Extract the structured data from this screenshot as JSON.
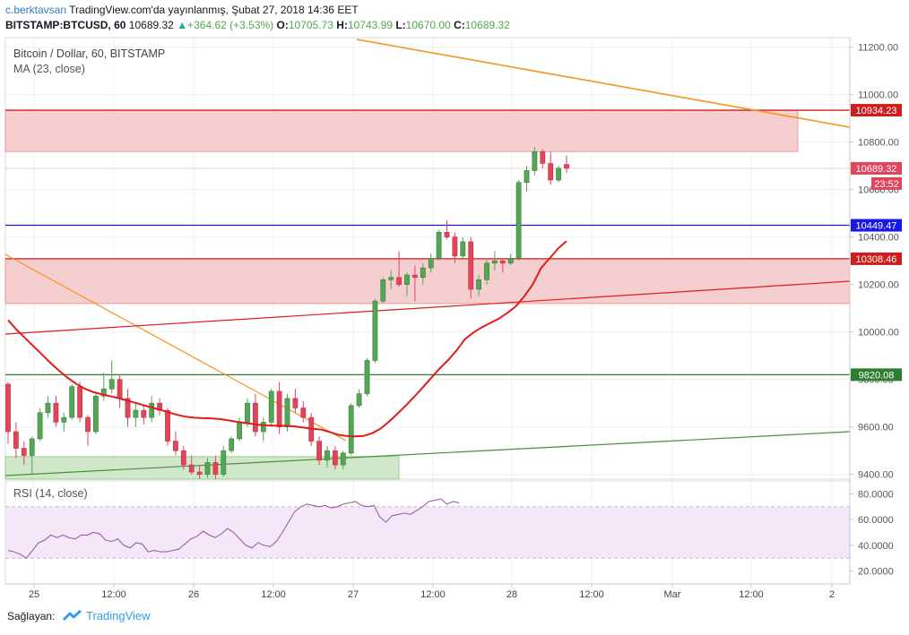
{
  "header": {
    "user": "c.berktavsan",
    "published": "TradingView.com'da yayınlanmış, Şubat 27, 2018 14:36 EET",
    "symbol": "BITSTAMP:BTCUSD, 60",
    "price": "10689.32",
    "change": "+364.62 (+3.53%)",
    "o_label": "O:",
    "o": "10705.73",
    "h_label": "H:",
    "h": "10743.99",
    "l_label": "L:",
    "l": "10670.00",
    "c_label": "C:",
    "c": "10689.32"
  },
  "legend": {
    "title": "Bitcoin / Dollar, 60, BITSTAMP",
    "ma": "MA (23, close)",
    "rsi": "RSI (14, close)"
  },
  "footer": {
    "label": "Sağlayan:",
    "brand": "TradingView"
  },
  "colors": {
    "up": "#53a653",
    "down": "#e0455a",
    "ma": "#e01b1b",
    "rsi": "#9c5fa8",
    "trend_orange": "#f7931a",
    "red_line": "#e01b1b",
    "blue_line": "#1a18e8",
    "green_line": "#2e7d32"
  },
  "chart_data": {
    "type": "candlestick",
    "ylim": [
      9380,
      11240
    ],
    "y_ticks": [
      "11200.00",
      "11000.00",
      "10800.00",
      "10600.00",
      "10400.00",
      "10200.00",
      "10000.00",
      "9800.00",
      "9600.00",
      "9400.00"
    ],
    "x_ticks": [
      "25",
      "12:00",
      "26",
      "12:00",
      "27",
      "12:00",
      "28",
      "12:00",
      "Mar",
      "12:00",
      "2"
    ],
    "price_labels": [
      {
        "value": 10934.23,
        "text": "10934.23",
        "color": "#cc1e1e"
      },
      {
        "value": 10689.32,
        "text": "10689.32",
        "color": "#e0455a"
      },
      {
        "value": 10449.47,
        "text": "10449.47",
        "color": "#1a18e8"
      },
      {
        "value": 10308.46,
        "text": "10308.46",
        "color": "#cc1e1e"
      },
      {
        "value": 9820.08,
        "text": "9820.08",
        "color": "#2e7d32"
      }
    ],
    "countdown": "23:52",
    "zones": [
      {
        "from": 10760,
        "to": 10934.23,
        "color": "#f4c7c7",
        "stroke": "#e88a8a"
      },
      {
        "from": 10120,
        "to": 10308.46,
        "color": "#f4c7c7",
        "stroke": "#e88a8a"
      },
      {
        "from": 9380,
        "to": 9475,
        "color": "#c8e5c0",
        "stroke": "#8cc47f"
      }
    ],
    "candles": [
      {
        "o": 9780,
        "h": 9790,
        "l": 9530,
        "c": 9580
      },
      {
        "o": 9580,
        "h": 9620,
        "l": 9470,
        "c": 9510
      },
      {
        "o": 9510,
        "h": 9540,
        "l": 9440,
        "c": 9480
      },
      {
        "o": 9480,
        "h": 9560,
        "l": 9400,
        "c": 9550
      },
      {
        "o": 9550,
        "h": 9680,
        "l": 9540,
        "c": 9660
      },
      {
        "o": 9660,
        "h": 9730,
        "l": 9640,
        "c": 9700
      },
      {
        "o": 9700,
        "h": 9730,
        "l": 9600,
        "c": 9620
      },
      {
        "o": 9620,
        "h": 9660,
        "l": 9580,
        "c": 9640
      },
      {
        "o": 9640,
        "h": 9780,
        "l": 9630,
        "c": 9770
      },
      {
        "o": 9770,
        "h": 9790,
        "l": 9620,
        "c": 9640
      },
      {
        "o": 9640,
        "h": 9650,
        "l": 9520,
        "c": 9580
      },
      {
        "o": 9580,
        "h": 9740,
        "l": 9570,
        "c": 9730
      },
      {
        "o": 9730,
        "h": 9830,
        "l": 9710,
        "c": 9760
      },
      {
        "o": 9760,
        "h": 9880,
        "l": 9740,
        "c": 9800
      },
      {
        "o": 9800,
        "h": 9820,
        "l": 9680,
        "c": 9720
      },
      {
        "o": 9720,
        "h": 9760,
        "l": 9600,
        "c": 9640
      },
      {
        "o": 9640,
        "h": 9700,
        "l": 9600,
        "c": 9670
      },
      {
        "o": 9670,
        "h": 9690,
        "l": 9610,
        "c": 9640
      },
      {
        "o": 9640,
        "h": 9730,
        "l": 9620,
        "c": 9700
      },
      {
        "o": 9700,
        "h": 9720,
        "l": 9650,
        "c": 9670
      },
      {
        "o": 9670,
        "h": 9680,
        "l": 9520,
        "c": 9540
      },
      {
        "o": 9540,
        "h": 9580,
        "l": 9480,
        "c": 9500
      },
      {
        "o": 9500,
        "h": 9520,
        "l": 9420,
        "c": 9440
      },
      {
        "o": 9440,
        "h": 9480,
        "l": 9400,
        "c": 9410
      },
      {
        "o": 9410,
        "h": 9440,
        "l": 9380,
        "c": 9400
      },
      {
        "o": 9400,
        "h": 9470,
        "l": 9385,
        "c": 9450
      },
      {
        "o": 9450,
        "h": 9480,
        "l": 9380,
        "c": 9400
      },
      {
        "o": 9400,
        "h": 9520,
        "l": 9390,
        "c": 9500
      },
      {
        "o": 9500,
        "h": 9560,
        "l": 9490,
        "c": 9550
      },
      {
        "o": 9550,
        "h": 9640,
        "l": 9540,
        "c": 9620
      },
      {
        "o": 9620,
        "h": 9720,
        "l": 9600,
        "c": 9700
      },
      {
        "o": 9700,
        "h": 9740,
        "l": 9560,
        "c": 9580
      },
      {
        "o": 9580,
        "h": 9640,
        "l": 9540,
        "c": 9620
      },
      {
        "o": 9620,
        "h": 9760,
        "l": 9600,
        "c": 9750
      },
      {
        "o": 9750,
        "h": 9790,
        "l": 9570,
        "c": 9600
      },
      {
        "o": 9600,
        "h": 9740,
        "l": 9580,
        "c": 9720
      },
      {
        "o": 9720,
        "h": 9760,
        "l": 9660,
        "c": 9680
      },
      {
        "o": 9680,
        "h": 9710,
        "l": 9620,
        "c": 9640
      },
      {
        "o": 9640,
        "h": 9660,
        "l": 9520,
        "c": 9540
      },
      {
        "o": 9540,
        "h": 9560,
        "l": 9440,
        "c": 9460
      },
      {
        "o": 9460,
        "h": 9520,
        "l": 9430,
        "c": 9500
      },
      {
        "o": 9500,
        "h": 9520,
        "l": 9420,
        "c": 9440
      },
      {
        "o": 9440,
        "h": 9500,
        "l": 9420,
        "c": 9490
      },
      {
        "o": 9490,
        "h": 9700,
        "l": 9480,
        "c": 9690
      },
      {
        "o": 9690,
        "h": 9760,
        "l": 9680,
        "c": 9740
      },
      {
        "o": 9740,
        "h": 9890,
        "l": 9730,
        "c": 9880
      },
      {
        "o": 9880,
        "h": 10140,
        "l": 9870,
        "c": 10130
      },
      {
        "o": 10130,
        "h": 10230,
        "l": 10120,
        "c": 10220
      },
      {
        "o": 10220,
        "h": 10260,
        "l": 10180,
        "c": 10230
      },
      {
        "o": 10230,
        "h": 10340,
        "l": 10190,
        "c": 10200
      },
      {
        "o": 10200,
        "h": 10250,
        "l": 10150,
        "c": 10240
      },
      {
        "o": 10240,
        "h": 10280,
        "l": 10130,
        "c": 10230
      },
      {
        "o": 10230,
        "h": 10290,
        "l": 10200,
        "c": 10270
      },
      {
        "o": 10270,
        "h": 10330,
        "l": 10250,
        "c": 10310
      },
      {
        "o": 10310,
        "h": 10430,
        "l": 10300,
        "c": 10420
      },
      {
        "o": 10420,
        "h": 10470,
        "l": 10390,
        "c": 10400
      },
      {
        "o": 10400,
        "h": 10420,
        "l": 10290,
        "c": 10320
      },
      {
        "o": 10320,
        "h": 10400,
        "l": 10310,
        "c": 10380
      },
      {
        "o": 10380,
        "h": 10400,
        "l": 10140,
        "c": 10180
      },
      {
        "o": 10180,
        "h": 10240,
        "l": 10150,
        "c": 10220
      },
      {
        "o": 10220,
        "h": 10310,
        "l": 10200,
        "c": 10290
      },
      {
        "o": 10290,
        "h": 10340,
        "l": 10260,
        "c": 10300
      },
      {
        "o": 10300,
        "h": 10310,
        "l": 10250,
        "c": 10290
      },
      {
        "o": 10290,
        "h": 10330,
        "l": 10280,
        "c": 10310
      },
      {
        "o": 10310,
        "h": 10640,
        "l": 10300,
        "c": 10630
      },
      {
        "o": 10630,
        "h": 10700,
        "l": 10590,
        "c": 10680
      },
      {
        "o": 10680,
        "h": 10780,
        "l": 10660,
        "c": 10760
      },
      {
        "o": 10760,
        "h": 10770,
        "l": 10690,
        "c": 10710
      },
      {
        "o": 10710,
        "h": 10760,
        "l": 10620,
        "c": 10640
      },
      {
        "o": 10640,
        "h": 10700,
        "l": 10630,
        "c": 10690
      },
      {
        "o": 10705.73,
        "h": 10743.99,
        "l": 10670,
        "c": 10689.32
      }
    ],
    "ma_series": [
      10050,
      10010,
      9975,
      9940,
      9905,
      9870,
      9838,
      9808,
      9783,
      9762,
      9748,
      9738,
      9730,
      9722,
      9712,
      9702,
      9692,
      9682,
      9672,
      9661,
      9651,
      9643,
      9639,
      9637,
      9636,
      9633,
      9628,
      9622,
      9617,
      9612,
      9608,
      9606,
      9605,
      9605,
      9602,
      9597,
      9592,
      9589,
      9579,
      9567,
      9562,
      9560,
      9562,
      9573,
      9592,
      9622,
      9655,
      9690,
      9727,
      9766,
      9806,
      9846,
      9881,
      9922,
      9970,
      9998,
      10020,
      10038,
      10056,
      10080,
      10108,
      10150,
      10200,
      10270,
      10310,
      10352,
      10383
    ],
    "rsi_ylim": [
      10,
      90
    ],
    "rsi_ticks": [
      "80.0000",
      "60.0000",
      "40.0000",
      "20.0000"
    ],
    "rsi_band": [
      30,
      70
    ],
    "rsi_series": [
      36,
      35,
      33,
      30,
      36,
      42,
      44,
      48,
      46,
      48,
      46,
      45,
      48,
      48,
      50,
      49,
      44,
      43,
      45,
      40,
      38,
      42,
      41,
      35,
      36,
      35,
      35,
      36,
      37,
      41,
      45,
      47,
      51,
      48,
      46,
      49,
      53,
      50,
      45,
      40,
      38,
      42,
      40,
      39,
      43,
      50,
      58,
      66,
      70,
      72,
      71,
      70,
      71,
      69,
      70,
      72,
      73,
      74,
      71,
      70,
      71,
      62,
      58,
      63,
      64,
      65,
      64,
      67,
      70,
      74,
      75,
      76,
      72,
      74,
      73
    ]
  }
}
